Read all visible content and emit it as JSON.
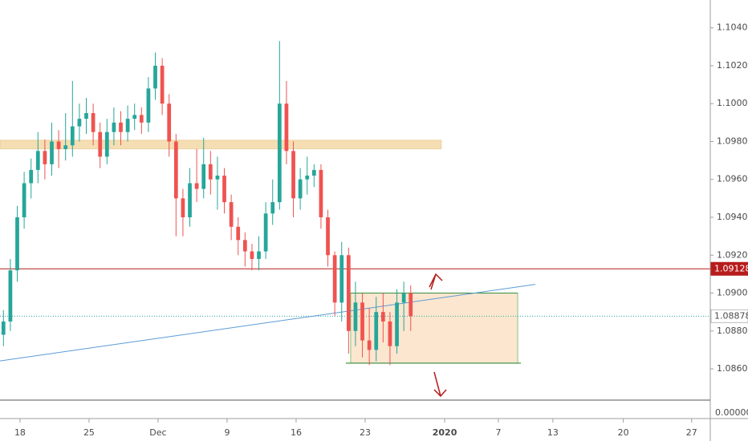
{
  "chart_data": {
    "type": "candlestick",
    "x": [
      -1.2,
      -0.7,
      -0.2,
      0.3,
      0.8,
      1.3,
      1.8,
      2.3,
      2.8,
      3.3,
      3.8,
      4.3,
      4.8,
      5.3,
      5.8,
      6.3,
      6.8,
      7.3,
      7.8,
      8.3,
      8.8,
      9.3,
      9.8,
      10.3,
      10.8,
      11.3,
      11.8,
      12.3,
      12.8,
      13.3,
      13.8,
      14.3,
      14.8,
      15.3,
      15.8,
      16.3,
      16.8,
      17.3,
      17.8,
      18.3,
      18.8,
      19.3,
      19.8,
      20.3,
      20.8,
      21.3,
      21.8,
      22.3,
      22.8,
      23.3,
      23.8,
      24.3,
      24.8,
      25.3,
      25.8,
      26.3,
      26.8,
      27.3,
      27.8,
      28.3
    ],
    "open": [
      1.0878,
      1.0885,
      1.0912,
      1.094,
      1.0958,
      1.0965,
      1.0975,
      1.0968,
      1.098,
      1.0976,
      1.0978,
      1.0988,
      1.0992,
      1.0995,
      1.0985,
      1.0972,
      1.0985,
      1.099,
      1.0985,
      1.0992,
      1.0994,
      1.099,
      1.1008,
      1.102,
      1.1,
      1.098,
      1.095,
      1.094,
      1.0958,
      1.0955,
      1.0968,
      1.096,
      1.0962,
      1.0948,
      1.0935,
      1.0928,
      1.0922,
      1.0918,
      1.0922,
      1.0942,
      1.0948,
      1.1,
      1.0975,
      1.095,
      1.096,
      1.0962,
      1.0965,
      1.094,
      1.092,
      1.0895,
      1.092,
      1.088,
      1.0895,
      1.0875,
      1.087,
      1.089,
      1.0885,
      1.0872,
      1.0895,
      1.09
    ],
    "high": [
      1.0891,
      1.0918,
      1.0946,
      1.0964,
      1.0971,
      1.0985,
      1.0981,
      1.099,
      1.0986,
      1.0995,
      1.1012,
      1.1,
      1.1003,
      1.1,
      1.099,
      1.0992,
      1.0998,
      1.0996,
      1.0999,
      1.1,
      1.0998,
      1.1014,
      1.1027,
      1.1024,
      1.1005,
      1.0984,
      1.0955,
      1.0966,
      1.0976,
      1.0982,
      1.0975,
      1.0972,
      1.0966,
      1.0952,
      1.094,
      1.0932,
      1.0926,
      1.093,
      1.0948,
      1.096,
      1.1033,
      1.1012,
      1.098,
      1.0966,
      1.0972,
      1.0968,
      1.0968,
      1.0944,
      1.0922,
      1.0927,
      1.0924,
      1.0906,
      1.09,
      1.0892,
      1.0898,
      1.09,
      1.089,
      1.0902,
      1.0906,
      1.0904
    ],
    "low": [
      1.0872,
      1.088,
      1.0906,
      1.0934,
      1.095,
      1.0958,
      1.096,
      1.0962,
      1.0966,
      1.097,
      1.0972,
      1.098,
      1.0984,
      1.0978,
      1.0966,
      1.0968,
      1.0978,
      1.0978,
      1.098,
      1.0986,
      1.0984,
      1.0985,
      1.1002,
      1.0994,
      1.0972,
      1.093,
      1.093,
      1.0935,
      1.0948,
      1.095,
      1.0952,
      1.0944,
      1.0942,
      1.0928,
      1.092,
      1.0914,
      1.0912,
      1.0912,
      1.0918,
      1.0936,
      1.0944,
      1.0968,
      1.094,
      1.0944,
      1.0952,
      1.0956,
      1.0934,
      1.0914,
      1.0888,
      1.0885,
      1.0868,
      1.0872,
      1.0866,
      1.0862,
      1.0864,
      1.0874,
      1.0862,
      1.0868,
      1.088,
      1.088
    ],
    "close": [
      1.0885,
      1.0912,
      1.094,
      1.0958,
      1.0965,
      1.0975,
      1.0968,
      1.098,
      1.0976,
      1.0978,
      1.0988,
      1.0992,
      1.0995,
      1.0985,
      1.0972,
      1.0985,
      1.099,
      1.0985,
      1.0992,
      1.0994,
      1.099,
      1.1008,
      1.102,
      1.1,
      1.098,
      1.095,
      1.094,
      1.0958,
      1.0955,
      1.0968,
      1.096,
      1.0962,
      1.0948,
      1.0935,
      1.0928,
      1.0922,
      1.0918,
      1.0922,
      1.0942,
      1.0948,
      1.1,
      1.0975,
      1.095,
      1.096,
      1.0962,
      1.0965,
      1.094,
      1.092,
      1.0895,
      1.092,
      1.088,
      1.0895,
      1.0875,
      1.087,
      1.089,
      1.0885,
      1.0872,
      1.0895,
      1.09,
      1.08878
    ],
    "up_color": "#26a69a",
    "down_color": "#ef5350",
    "xlim": [
      -1.45,
      50.0
    ],
    "ylim": [
      1.08435,
      1.10547
    ],
    "xticks": [
      {
        "value": 0,
        "label": "18"
      },
      {
        "value": 5,
        "label": "25"
      },
      {
        "value": 10,
        "label": "Dec"
      },
      {
        "value": 15,
        "label": "9"
      },
      {
        "value": 20,
        "label": "16"
      },
      {
        "value": 25,
        "label": "23"
      },
      {
        "value": 30.76,
        "label": "2020"
      },
      {
        "value": 34.65,
        "label": "7"
      },
      {
        "value": 38.6,
        "label": "13"
      },
      {
        "value": 43.7,
        "label": "20"
      },
      {
        "value": 48.65,
        "label": "27"
      }
    ],
    "yticks": [
      {
        "value": 1.086,
        "label": "1.08600"
      },
      {
        "value": 1.088,
        "label": "1.08800"
      },
      {
        "value": 1.09,
        "label": "1.09000"
      },
      {
        "value": 1.092,
        "label": "1.09200"
      },
      {
        "value": 1.094,
        "label": "1.09400"
      },
      {
        "value": 1.096,
        "label": "1.09600"
      },
      {
        "value": 1.098,
        "label": "1.09800"
      },
      {
        "value": 1.1,
        "label": "1.10000"
      },
      {
        "value": 1.102,
        "label": "1.10200"
      },
      {
        "value": 1.104,
        "label": "1.10400"
      }
    ],
    "price_lines": [
      {
        "value": 1.09128,
        "label": "1.09128",
        "color": "#b71c1c",
        "style": "solid"
      },
      {
        "value": 1.08878,
        "label": "1.08878",
        "color": "#26a69a",
        "style": "dotted"
      }
    ],
    "zone": {
      "x": [
        -1.45,
        30.52
      ],
      "y": [
        1.09761,
        1.09807
      ],
      "color": "#f5deb3"
    },
    "box": {
      "x": [
        23.95,
        36.05
      ],
      "y": [
        1.0863,
        1.09
      ],
      "color": "#fce6cf"
    },
    "trendline": {
      "x": [
        -1.45,
        37.33
      ],
      "y": [
        1.08642,
        1.09046
      ],
      "color": "#5b9bd5"
    },
    "lower_pane_label": "0.00000"
  }
}
